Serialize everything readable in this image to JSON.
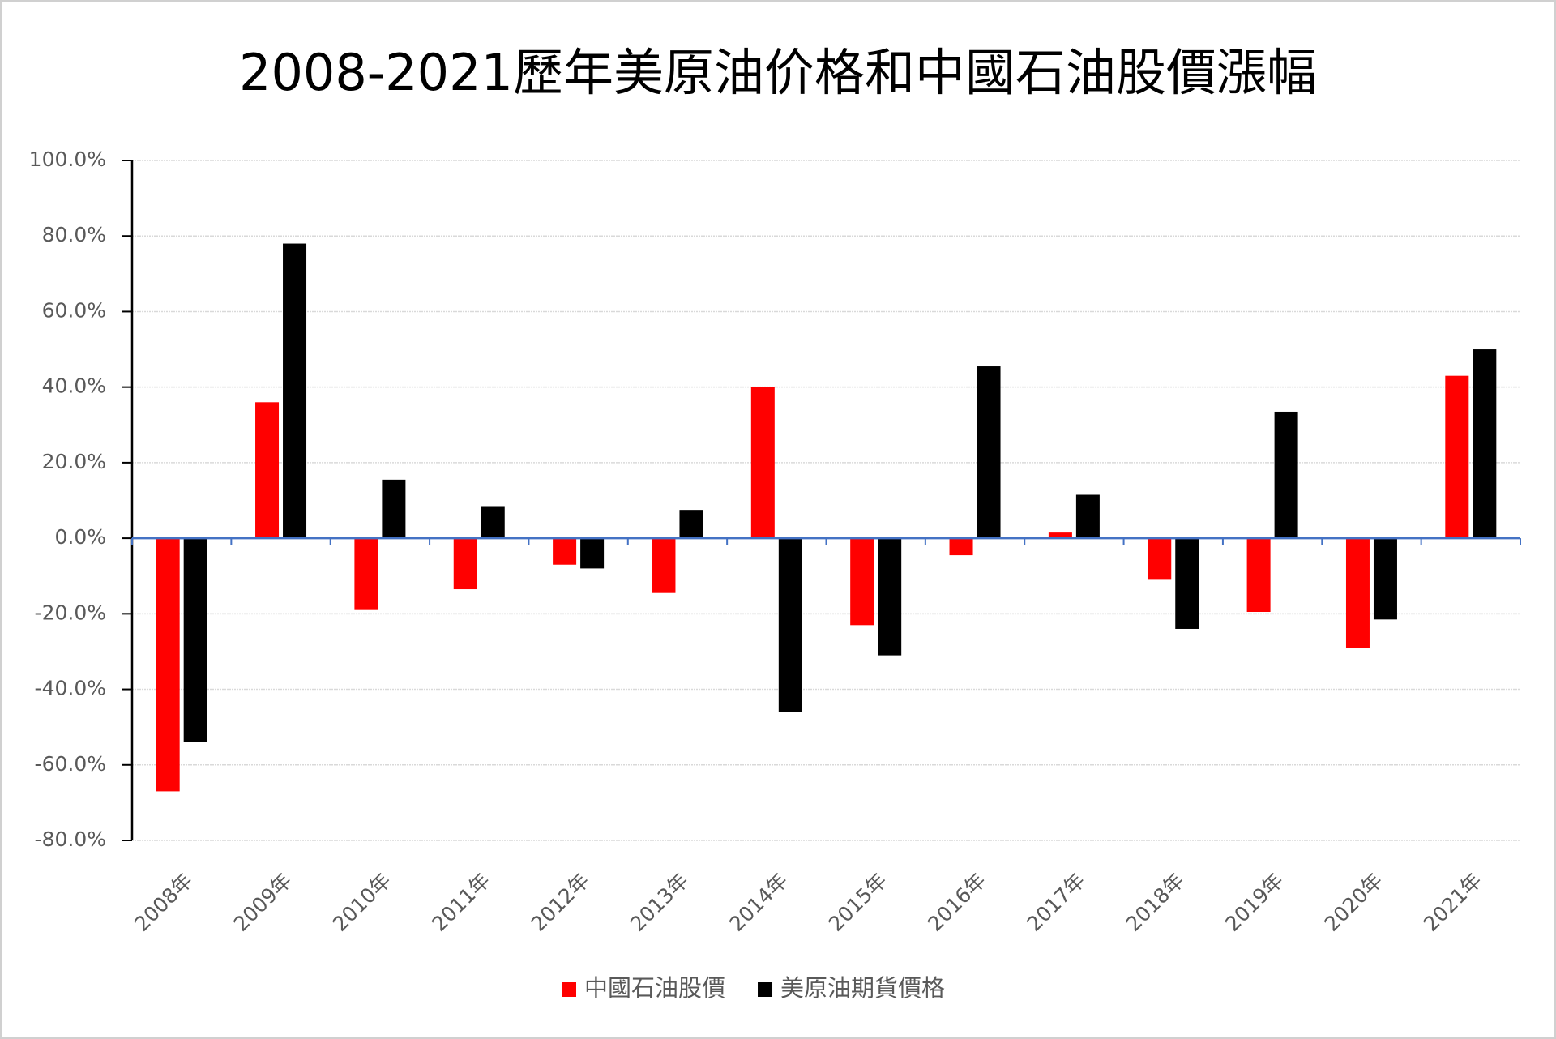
{
  "chart_data": {
    "type": "bar",
    "title": "2008-2021歷年美原油价格和中國石油股價漲幅",
    "categories": [
      "2008年",
      "2009年",
      "2010年",
      "2011年",
      "2012年",
      "2013年",
      "2014年",
      "2015年",
      "2016年",
      "2017年",
      "2018年",
      "2019年",
      "2020年",
      "2021年"
    ],
    "series": [
      {
        "name": "中國石油股價",
        "color": "#ff0000",
        "values": [
          -67,
          36,
          -19,
          -13.5,
          -7,
          -14.5,
          40,
          -23,
          -4.5,
          1.5,
          -11,
          -19.5,
          -29,
          43
        ]
      },
      {
        "name": "美原油期貨價格",
        "color": "#000000",
        "values": [
          -54,
          78,
          15.5,
          8.5,
          -8,
          7.5,
          -46,
          -31,
          45.5,
          11.5,
          -24,
          33.5,
          -21.5,
          50
        ]
      }
    ],
    "ylim": [
      -80,
      100
    ],
    "yticks": [
      {
        "value": -80,
        "label": "-80.0%"
      },
      {
        "value": -60,
        "label": "-60.0%"
      },
      {
        "value": -40,
        "label": "-40.0%"
      },
      {
        "value": -20,
        "label": "-20.0%"
      },
      {
        "value": 0,
        "label": "0.0%"
      },
      {
        "value": 20,
        "label": "20.0%"
      },
      {
        "value": 40,
        "label": "40.0%"
      },
      {
        "value": 60,
        "label": "60.0%"
      },
      {
        "value": 80,
        "label": "80.0%"
      },
      {
        "value": 100,
        "label": "100.0%"
      }
    ],
    "grid": true,
    "legend": "bottom"
  }
}
